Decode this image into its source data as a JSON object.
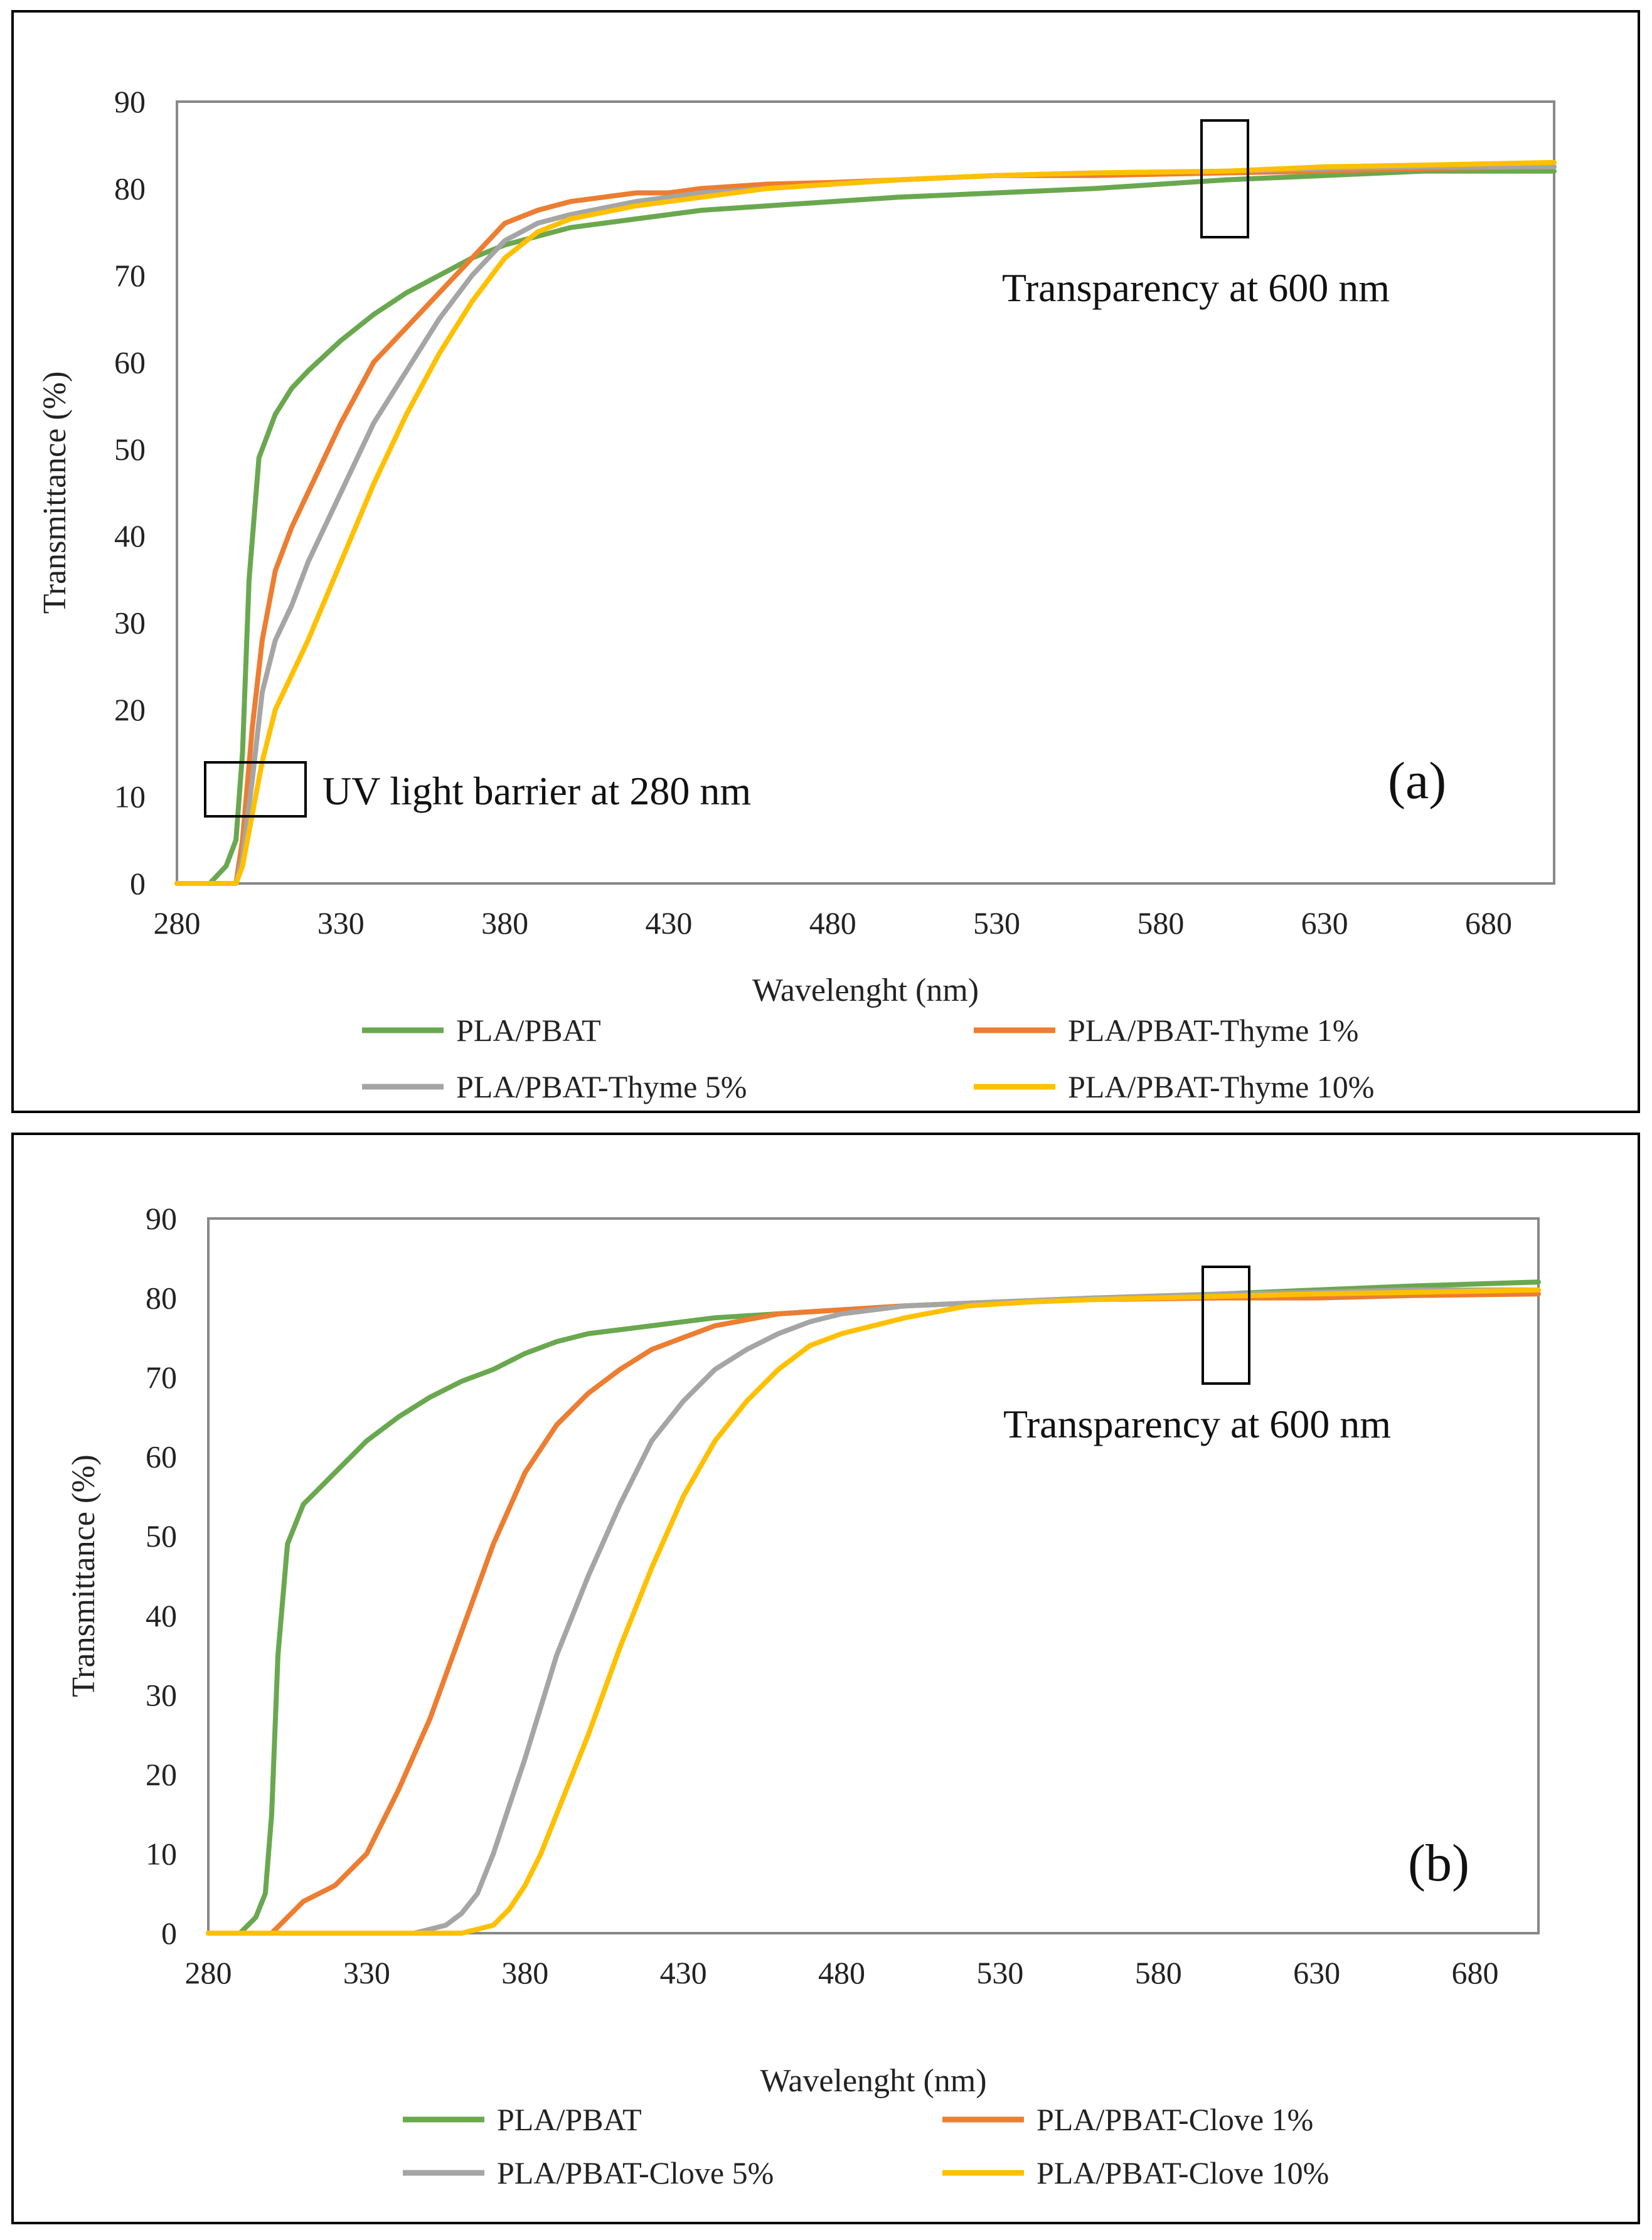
{
  "chart_data": [
    {
      "panel": "(a)",
      "type": "line",
      "xlabel": "Wavelenght (nm)",
      "ylabel": "Transmittance (%)",
      "xlim": [
        280,
        700
      ],
      "ylim": [
        0,
        90
      ],
      "xticks": [
        280,
        330,
        380,
        430,
        480,
        530,
        580,
        630,
        680
      ],
      "yticks": [
        0,
        10,
        20,
        30,
        40,
        50,
        60,
        70,
        80,
        90
      ],
      "annotations": [
        "Transparency  at 600 nm",
        "UV light  barrier  at 280 nm"
      ],
      "series": [
        {
          "name": "PLA/PBAT",
          "color": "#6aa84f",
          "x": [
            280,
            290,
            295,
            298,
            300,
            302,
            305,
            310,
            315,
            320,
            330,
            340,
            350,
            360,
            370,
            380,
            400,
            420,
            440,
            460,
            480,
            500,
            530,
            560,
            580,
            600,
            630,
            660,
            700
          ],
          "y": [
            0,
            0,
            2,
            5,
            15,
            35,
            49,
            54,
            57,
            59,
            62.5,
            65.5,
            68,
            70,
            72,
            73.5,
            75.5,
            76.5,
            77.5,
            78,
            78.5,
            79,
            79.5,
            80,
            80.5,
            81,
            81.5,
            82,
            82
          ]
        },
        {
          "name": "PLA/PBAT-Thyme 1%",
          "color": "#ed7d31",
          "x": [
            280,
            290,
            298,
            300,
            303,
            306,
            310,
            315,
            320,
            330,
            340,
            350,
            360,
            370,
            380,
            390,
            400,
            410,
            420,
            430,
            440,
            460,
            480,
            500,
            530,
            560,
            600,
            630,
            660,
            700
          ],
          "y": [
            0,
            0,
            0,
            5,
            18,
            28,
            36,
            41,
            45,
            53,
            60,
            64,
            68,
            72,
            76,
            77.5,
            78.5,
            79,
            79.5,
            79.5,
            80,
            80.5,
            80.7,
            81,
            81.5,
            81.5,
            81.8,
            82,
            82.3,
            82.5
          ]
        },
        {
          "name": "PLA/PBAT-Thyme 5%",
          "color": "#a5a5a5",
          "x": [
            280,
            290,
            298,
            300,
            303,
            306,
            310,
            315,
            320,
            330,
            340,
            350,
            360,
            370,
            380,
            390,
            400,
            420,
            440,
            460,
            480,
            500,
            530,
            560,
            600,
            630,
            660,
            700
          ],
          "y": [
            0,
            0,
            0,
            3,
            12,
            22,
            28,
            32,
            37,
            45,
            53,
            59,
            65,
            70,
            74,
            76,
            77,
            78.5,
            79.5,
            80,
            80.5,
            81,
            81.5,
            81.8,
            82,
            82.3,
            82.5,
            82.5
          ]
        },
        {
          "name": "PLA/PBAT-Thyme 10%",
          "color": "#ffc000",
          "x": [
            280,
            290,
            298,
            300,
            303,
            306,
            310,
            315,
            320,
            330,
            340,
            350,
            360,
            370,
            380,
            390,
            400,
            420,
            440,
            460,
            480,
            500,
            530,
            560,
            600,
            630,
            660,
            700
          ],
          "y": [
            0,
            0,
            0,
            2,
            8,
            14,
            20,
            24,
            28,
            37,
            46,
            54,
            61,
            67,
            72,
            75,
            76.5,
            78,
            79,
            80,
            80.5,
            81,
            81.5,
            81.8,
            82,
            82.5,
            82.7,
            83
          ]
        }
      ]
    },
    {
      "panel": "(b)",
      "type": "line",
      "xlabel": "Wavelenght (nm)",
      "ylabel": "Transmittance (%)",
      "xlim": [
        280,
        700
      ],
      "ylim": [
        0,
        90
      ],
      "xticks": [
        280,
        330,
        380,
        430,
        480,
        530,
        580,
        630,
        680
      ],
      "yticks": [
        0,
        10,
        20,
        30,
        40,
        50,
        60,
        70,
        80,
        90
      ],
      "annotations": [
        "Transparency  at 600 nm"
      ],
      "series": [
        {
          "name": "PLA/PBAT",
          "color": "#6aa84f",
          "x": [
            280,
            290,
            295,
            298,
            300,
            302,
            305,
            310,
            315,
            320,
            330,
            340,
            350,
            360,
            370,
            380,
            390,
            400,
            420,
            440,
            460,
            480,
            500,
            530,
            560,
            580,
            600,
            630,
            660,
            700
          ],
          "y": [
            0,
            0,
            2,
            5,
            15,
            35,
            49,
            54,
            56,
            58,
            62,
            65,
            67.5,
            69.5,
            71,
            73,
            74.5,
            75.5,
            76.5,
            77.5,
            78,
            78.5,
            79,
            79.5,
            80,
            80,
            80.5,
            81,
            81.5,
            82
          ]
        },
        {
          "name": "PLA/PBAT-Clove 1%",
          "color": "#ed7d31",
          "x": [
            280,
            295,
            300,
            305,
            310,
            320,
            330,
            340,
            350,
            360,
            370,
            380,
            390,
            400,
            410,
            420,
            430,
            440,
            460,
            480,
            500,
            530,
            560,
            600,
            630,
            660,
            700
          ],
          "y": [
            0,
            0,
            0,
            2,
            4,
            6,
            10,
            18,
            27,
            38,
            49,
            58,
            64,
            68,
            71,
            73.5,
            75,
            76.5,
            78,
            78.5,
            79,
            79.5,
            79.8,
            80,
            80,
            80.3,
            80.5
          ]
        },
        {
          "name": "PLA/PBAT-Clove 5%",
          "color": "#a5a5a5",
          "x": [
            280,
            300,
            330,
            345,
            350,
            355,
            360,
            365,
            370,
            375,
            380,
            390,
            400,
            410,
            420,
            430,
            440,
            450,
            460,
            470,
            480,
            500,
            530,
            560,
            600,
            630,
            660,
            700
          ],
          "y": [
            0,
            0,
            0,
            0,
            0.5,
            1,
            2.5,
            5,
            10,
            16,
            22,
            35,
            45,
            54,
            62,
            67,
            71,
            73.5,
            75.5,
            77,
            78,
            79,
            79.5,
            80,
            80.5,
            80.7,
            81,
            81
          ]
        },
        {
          "name": "PLA/PBAT-Clove 10%",
          "color": "#ffc000",
          "x": [
            280,
            300,
            330,
            360,
            365,
            370,
            375,
            380,
            385,
            390,
            400,
            410,
            420,
            430,
            440,
            450,
            460,
            470,
            480,
            490,
            500,
            520,
            540,
            560,
            600,
            630,
            660,
            700
          ],
          "y": [
            0,
            0,
            0,
            0,
            0.5,
            1,
            3,
            6,
            10,
            15,
            25,
            36,
            46,
            55,
            62,
            67,
            71,
            74,
            75.5,
            76.5,
            77.5,
            79,
            79.5,
            79.8,
            80.2,
            80.5,
            80.7,
            81
          ]
        }
      ]
    }
  ],
  "legend_a": [
    "PLA/PBAT",
    "PLA/PBAT-Thyme 1%",
    "PLA/PBAT-Thyme 5%",
    "PLA/PBAT-Thyme 10%"
  ],
  "legend_b": [
    "PLA/PBAT",
    "PLA/PBAT-Clove 1%",
    "PLA/PBAT-Clove 5%",
    "PLA/PBAT-Clove 10%"
  ]
}
